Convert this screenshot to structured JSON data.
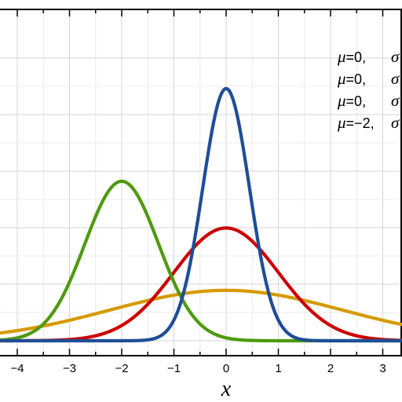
{
  "chart_data": {
    "type": "line",
    "title": "",
    "xlabel": "x",
    "ylabel": "",
    "xlim": [
      -4.45,
      3.35
    ],
    "ylim": [
      -0.015,
      1.08
    ],
    "grid": true,
    "x_ticks": [
      -4,
      -3,
      -2,
      -1,
      0,
      1,
      2,
      3
    ],
    "x_tick_labels": [
      "−4",
      "−3",
      "−2",
      "−1",
      "0",
      "1",
      "2",
      "3"
    ],
    "legend_position": "top-right",
    "legend": [
      {
        "mu_symbol": "μ",
        "mu_value": "=0,",
        "sigma_symbol": "σ",
        "color": "#1f4e96"
      },
      {
        "mu_symbol": "μ",
        "mu_value": "=0,",
        "sigma_symbol": "σ",
        "color": "#cc0000"
      },
      {
        "mu_symbol": "μ",
        "mu_value": "=0,",
        "sigma_symbol": "σ",
        "color": "#d69a00"
      },
      {
        "mu_symbol": "μ",
        "mu_value": "=−2,",
        "sigma_symbol": "σ",
        "color": "#4f9a0f"
      }
    ],
    "series": [
      {
        "mu": 0,
        "sigma2": 0.2,
        "color": "#1f4e96"
      },
      {
        "mu": 0,
        "sigma2": 1.0,
        "color": "#cc0000"
      },
      {
        "mu": 0,
        "sigma2": 5.0,
        "color": "#d69a00"
      },
      {
        "mu": -2,
        "sigma2": 0.5,
        "color": "#4f9a0f"
      }
    ]
  }
}
